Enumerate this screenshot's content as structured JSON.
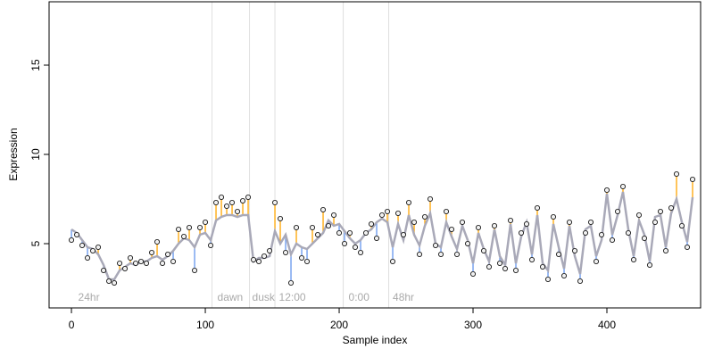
{
  "chart_data": {
    "type": "scatter",
    "xlabel": "Sample index",
    "ylabel": "Expression",
    "xlim": [
      -16.7,
      470
    ],
    "ylim": [
      1.4,
      18.55
    ],
    "xticks": [
      0,
      100,
      200,
      300,
      400
    ],
    "yticks": [
      5,
      10,
      15
    ],
    "vlines": [
      105,
      133,
      152,
      203,
      237
    ],
    "period_labels": [
      {
        "x": 3,
        "label": "24hr"
      },
      {
        "x": 107,
        "label": "dawn"
      },
      {
        "x": 133,
        "label": "dusk"
      },
      {
        "x": 153,
        "label": "12:00"
      },
      {
        "x": 205,
        "label": "0:00"
      },
      {
        "x": 238,
        "label": "48hr"
      }
    ],
    "point_color": "#f0f0f0",
    "fit_color": "#a9a9b8",
    "above_color": "#ffa500",
    "below_color": "#6495ed",
    "x": [
      0,
      4,
      8,
      12,
      16,
      20,
      24,
      28,
      32,
      36,
      40,
      44,
      48,
      52,
      56,
      60,
      64,
      68,
      72,
      76,
      80,
      84,
      88,
      92,
      96,
      100,
      104,
      108,
      112,
      116,
      120,
      124,
      128,
      132,
      136,
      140,
      144,
      148,
      152,
      156,
      160,
      164,
      168,
      172,
      176,
      180,
      184,
      188,
      192,
      196,
      200,
      204,
      208,
      212,
      216,
      220,
      224,
      228,
      232,
      236,
      240,
      244,
      248,
      252,
      256,
      260,
      264,
      268,
      272,
      276,
      280,
      284,
      288,
      292,
      296,
      300,
      304,
      308,
      312,
      316,
      320,
      324,
      328,
      332,
      336,
      340,
      344,
      348,
      352,
      356,
      360,
      364,
      368,
      372,
      376,
      380,
      384,
      388,
      392,
      396,
      400,
      404,
      408,
      412,
      416,
      420,
      424,
      428,
      432,
      436,
      440,
      444,
      448,
      452,
      456,
      460,
      464
    ],
    "values": [
      5.2,
      5.5,
      4.9,
      4.2,
      4.6,
      4.8,
      3.5,
      2.9,
      2.8,
      3.9,
      3.6,
      4.2,
      3.9,
      4.0,
      3.9,
      4.5,
      5.1,
      3.9,
      4.4,
      4.0,
      5.8,
      5.4,
      5.9,
      3.5,
      5.9,
      6.2,
      4.9,
      7.3,
      7.6,
      7.1,
      7.3,
      6.8,
      7.4,
      7.6,
      4.1,
      4.0,
      4.3,
      4.6,
      7.3,
      6.4,
      4.5,
      2.8,
      5.9,
      4.2,
      4.0,
      5.9,
      5.5,
      6.9,
      6.0,
      6.6,
      5.6,
      5.0,
      5.6,
      4.8,
      4.5,
      5.6,
      6.1,
      5.3,
      6.6,
      6.8,
      4.0,
      6.7,
      5.5,
      7.3,
      6.2,
      4.4,
      6.5,
      7.5,
      4.9,
      4.4,
      6.8,
      5.8,
      4.4,
      6.2,
      5.0,
      3.3,
      5.9,
      4.6,
      3.7,
      6.0,
      3.9,
      3.6,
      6.3,
      3.5,
      5.6,
      6.1,
      4.1,
      7.0,
      3.7,
      3.0,
      6.5,
      4.4,
      3.2,
      6.2,
      4.6,
      2.9,
      5.6,
      6.2,
      4.0,
      5.5,
      8.0,
      5.2,
      6.8,
      8.2,
      5.6,
      4.1,
      6.6,
      5.3,
      3.8,
      6.2,
      6.8,
      4.6,
      7.0,
      8.9,
      6.0,
      4.8,
      8.6
    ],
    "fitted": [
      5.8,
      5.6,
      5.2,
      4.8,
      4.7,
      4.4,
      3.8,
      3.0,
      3.0,
      3.5,
      3.7,
      3.9,
      3.8,
      4.0,
      4.0,
      4.2,
      4.3,
      4.1,
      4.3,
      4.6,
      5.0,
      5.3,
      5.2,
      4.8,
      5.5,
      5.6,
      5.2,
      6.3,
      6.5,
      6.6,
      6.6,
      6.5,
      6.6,
      6.6,
      4.0,
      4.2,
      4.2,
      4.3,
      5.7,
      5.0,
      5.5,
      4.4,
      5.0,
      4.8,
      4.7,
      5.0,
      5.3,
      5.6,
      6.3,
      6.0,
      6.1,
      5.7,
      5.3,
      5.0,
      5.2,
      5.6,
      5.8,
      6.2,
      6.4,
      6.2,
      4.8,
      6.1,
      5.2,
      6.6,
      5.5,
      4.9,
      6.0,
      6.7,
      5.0,
      4.8,
      6.2,
      5.4,
      4.7,
      6.0,
      5.2,
      3.9,
      5.6,
      4.7,
      4.0,
      5.8,
      4.3,
      3.8,
      6.1,
      3.9,
      5.4,
      6.2,
      4.4,
      6.6,
      3.9,
      3.5,
      6.1,
      4.8,
      3.6,
      6.0,
      4.3,
      3.3,
      5.8,
      6.0,
      4.3,
      5.2,
      7.8,
      5.5,
      6.6,
      7.9,
      5.8,
      4.3,
      6.3,
      5.5,
      4.0,
      6.5,
      6.6,
      4.8,
      6.7,
      7.5,
      6.2,
      5.1,
      7.6
    ]
  }
}
